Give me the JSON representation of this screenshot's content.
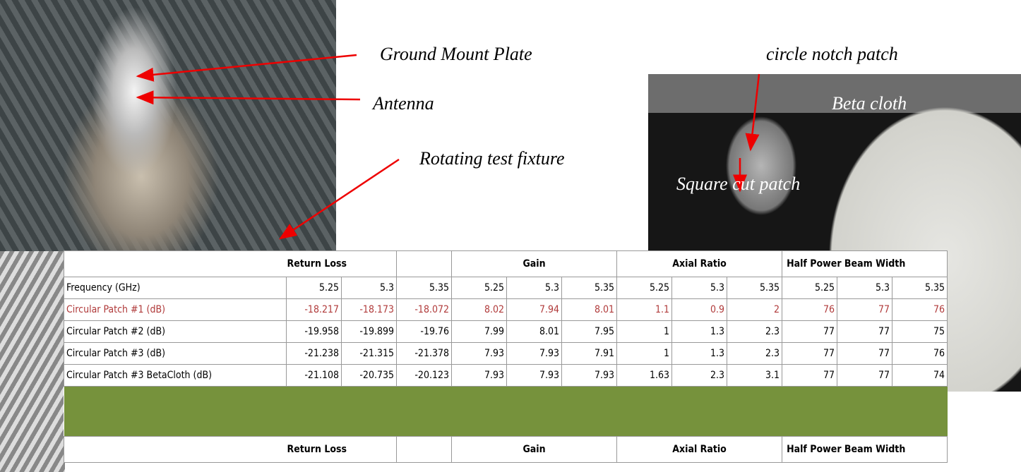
{
  "annotations": [
    "Ground Mount Plate",
    "Antenna",
    "Rotating test fixture",
    "circle notch patch",
    "Beta cloth",
    "Square cut patch"
  ],
  "table": {
    "header": [
      "Return Loss",
      "Gain",
      "Axial Ratio",
      "Half Power Beam Width"
    ],
    "rows": [
      [
        "Frequency (GHz)",
        "5.25",
        "5.3",
        "5.35",
        "5.25",
        "5.3",
        "5.35",
        "5.25",
        "5.3",
        "5.35",
        "5.25",
        "5.3",
        "5.35"
      ],
      [
        "Circular Patch #1 (dB)",
        "-18.217",
        "-18.173",
        "-18.072",
        "8.02",
        "7.94",
        "8.01",
        "1.1",
        "0.9",
        "2",
        "76",
        "77",
        "76"
      ],
      [
        "Circular Patch #2 (dB)",
        "-19.958",
        "-19.899",
        "-19.76",
        "7.99",
        "8.01",
        "7.95",
        "1",
        "1.3",
        "2.3",
        "77",
        "77",
        "75"
      ],
      [
        "Circular Patch #3 (dB)",
        "-21.238",
        "-21.315",
        "-21.378",
        "7.93",
        "7.93",
        "7.91",
        "1",
        "1.3",
        "2.3",
        "77",
        "77",
        "76"
      ],
      [
        "Circular Patch #3 BetaCloth (dB)",
        "-21.108",
        "-20.735",
        "-20.123",
        "7.93",
        "7.93",
        "7.93",
        "1.63",
        "2.3",
        "3.1",
        "77",
        "77",
        "74"
      ]
    ],
    "header2": [
      "Return Loss",
      "Gain",
      "Axial Ratio",
      "Half Power Beam Width"
    ]
  }
}
